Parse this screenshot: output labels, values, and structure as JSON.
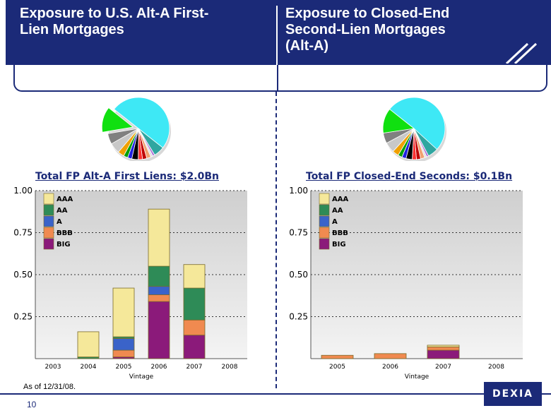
{
  "header": {
    "left_title": "Exposure to U.S. Alt-A First-\nLien Mortgages",
    "right_title": "Exposure to Closed-End\nSecond-Lien Mortgages\n(Alt-A)"
  },
  "left_total": "Total FP Alt-A First Liens: $2.0Bn",
  "right_total": "Total FP Closed-End Seconds: $0.1Bn",
  "footer": {
    "note": "As of 12/31/08.",
    "page_number": "10",
    "logo_text": "DEXIA"
  },
  "colors": {
    "header_bg": "#1b2a78",
    "AAA": "#f5e89a",
    "AA": "#2e8b57",
    "A": "#3a63c9",
    "BBB": "#f08a50",
    "BIG": "#8b1a7a"
  },
  "chart_data": [
    {
      "type": "pie",
      "slices": [
        {
          "value": 45,
          "color": "#3ee8f5"
        },
        {
          "value": 5,
          "color": "#2fa6a0"
        },
        {
          "value": 1,
          "color": "#b070d8"
        },
        {
          "value": 1,
          "color": "#e0e0e0"
        },
        {
          "value": 2,
          "color": "#f0a070"
        },
        {
          "value": 2,
          "color": "#c00000"
        },
        {
          "value": 2,
          "color": "#ff3030"
        },
        {
          "value": 3,
          "color": "#000000"
        },
        {
          "value": 2,
          "color": "#2020e0"
        },
        {
          "value": 2,
          "color": "#00a000"
        },
        {
          "value": 3,
          "color": "#f0a000"
        },
        {
          "value": 5,
          "color": "#c8c8c8"
        },
        {
          "value": 5,
          "color": "#808080"
        },
        {
          "value": 12,
          "color": "#10e010",
          "exploded": true
        }
      ]
    },
    {
      "type": "pie",
      "slices": [
        {
          "value": 47,
          "color": "#3ee8f5"
        },
        {
          "value": 5,
          "color": "#2fa6a0"
        },
        {
          "value": 1,
          "color": "#b070d8"
        },
        {
          "value": 1,
          "color": "#e0e0e0"
        },
        {
          "value": 2,
          "color": "#f0a070"
        },
        {
          "value": 2,
          "color": "#c00000"
        },
        {
          "value": 2,
          "color": "#ff3030"
        },
        {
          "value": 3,
          "color": "#000000"
        },
        {
          "value": 2,
          "color": "#2020e0"
        },
        {
          "value": 2,
          "color": "#00a000"
        },
        {
          "value": 3,
          "color": "#f0a000"
        },
        {
          "value": 5,
          "color": "#c8c8c8"
        },
        {
          "value": 5,
          "color": "#808080"
        },
        {
          "value": 12,
          "color": "#10e010"
        }
      ]
    },
    {
      "type": "bar",
      "stacked": true,
      "categories": [
        "2003",
        "2004",
        "2005",
        "2006",
        "2007",
        "2008"
      ],
      "xlabel": "Vintage",
      "ylabel": "",
      "ylim": [
        0,
        1.0
      ],
      "yticks": [
        "0.25",
        "0.50",
        "0.75",
        "1.00"
      ],
      "grid": true,
      "legend_position": "top-left",
      "series": [
        {
          "name": "BIG",
          "values": [
            0,
            0,
            0.01,
            0.34,
            0.14,
            0
          ]
        },
        {
          "name": "BBB",
          "values": [
            0,
            0,
            0.04,
            0.04,
            0.09,
            0
          ]
        },
        {
          "name": "A",
          "values": [
            0,
            0,
            0.07,
            0.05,
            0,
            0
          ]
        },
        {
          "name": "AA",
          "values": [
            0,
            0.01,
            0.01,
            0.12,
            0.19,
            0
          ]
        },
        {
          "name": "AAA",
          "values": [
            0,
            0.15,
            0.29,
            0.34,
            0.14,
            0
          ]
        }
      ]
    },
    {
      "type": "bar",
      "stacked": true,
      "categories": [
        "2005",
        "2006",
        "2007",
        "2008"
      ],
      "xlabel": "Vintage",
      "ylabel": "",
      "ylim": [
        0,
        1.0
      ],
      "yticks": [
        "0.25",
        "0.50",
        "0.75",
        "1.00"
      ],
      "grid": true,
      "legend_position": "top-left",
      "series": [
        {
          "name": "BIG",
          "values": [
            0,
            0,
            0.05,
            0
          ]
        },
        {
          "name": "BBB",
          "values": [
            0.02,
            0.03,
            0.02,
            0
          ]
        },
        {
          "name": "A",
          "values": [
            0,
            0,
            0,
            0
          ]
        },
        {
          "name": "AA",
          "values": [
            0,
            0,
            0,
            0
          ]
        },
        {
          "name": "AAA",
          "values": [
            0,
            0,
            0.01,
            0
          ]
        }
      ]
    }
  ]
}
